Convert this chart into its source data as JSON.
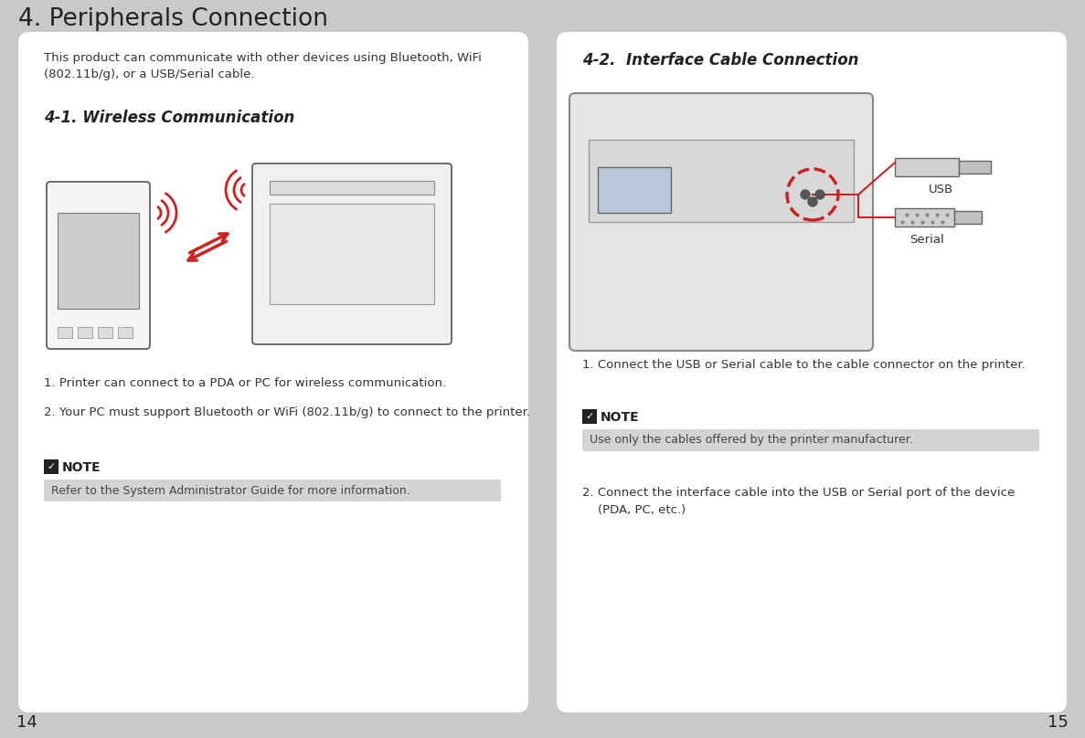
{
  "bg_color": "#c9c9c9",
  "panel_color": "#ffffff",
  "title": "4. Peripherals Connection",
  "title_fontsize": 19,
  "title_color": "#222222",
  "page_num_left": "14",
  "page_num_right": "15",
  "page_num_fontsize": 13,
  "left_panel": {
    "intro_text": "This product can communicate with other devices using Bluetooth, WiFi\n(802.11b/g), or a USB/Serial cable.",
    "intro_fontsize": 9.5,
    "section_title": "4-1. Wireless Communication",
    "section_fontsize": 12,
    "bullets": [
      "1. Printer can connect to a PDA or PC for wireless communication.",
      "2. Your PC must support Bluetooth or WiFi (802.11b/g) to connect to the printer."
    ],
    "bullet_fontsize": 9.5,
    "note_label": "NOTE",
    "note_text": "Refer to the System Administrator Guide for more information.",
    "note_fontsize": 9,
    "note_label_fontsize": 10,
    "note_bg": "#d4d4d4"
  },
  "right_panel": {
    "section_title": "4-2.  Interface Cable Connection",
    "section_fontsize": 12,
    "bullets_1": "1. Connect the USB or Serial cable to the cable connector on the printer.",
    "bullets_2": "2. Connect the interface cable into the USB or Serial port of the device\n    (PDA, PC, etc.)",
    "bullet_fontsize": 9.5,
    "note_label": "NOTE",
    "note_text": "Use only the cables offered by the printer manufacturer.",
    "note_fontsize": 9,
    "note_label_fontsize": 10,
    "note_bg": "#d4d4d4",
    "usb_label": "USB",
    "serial_label": "Serial"
  }
}
